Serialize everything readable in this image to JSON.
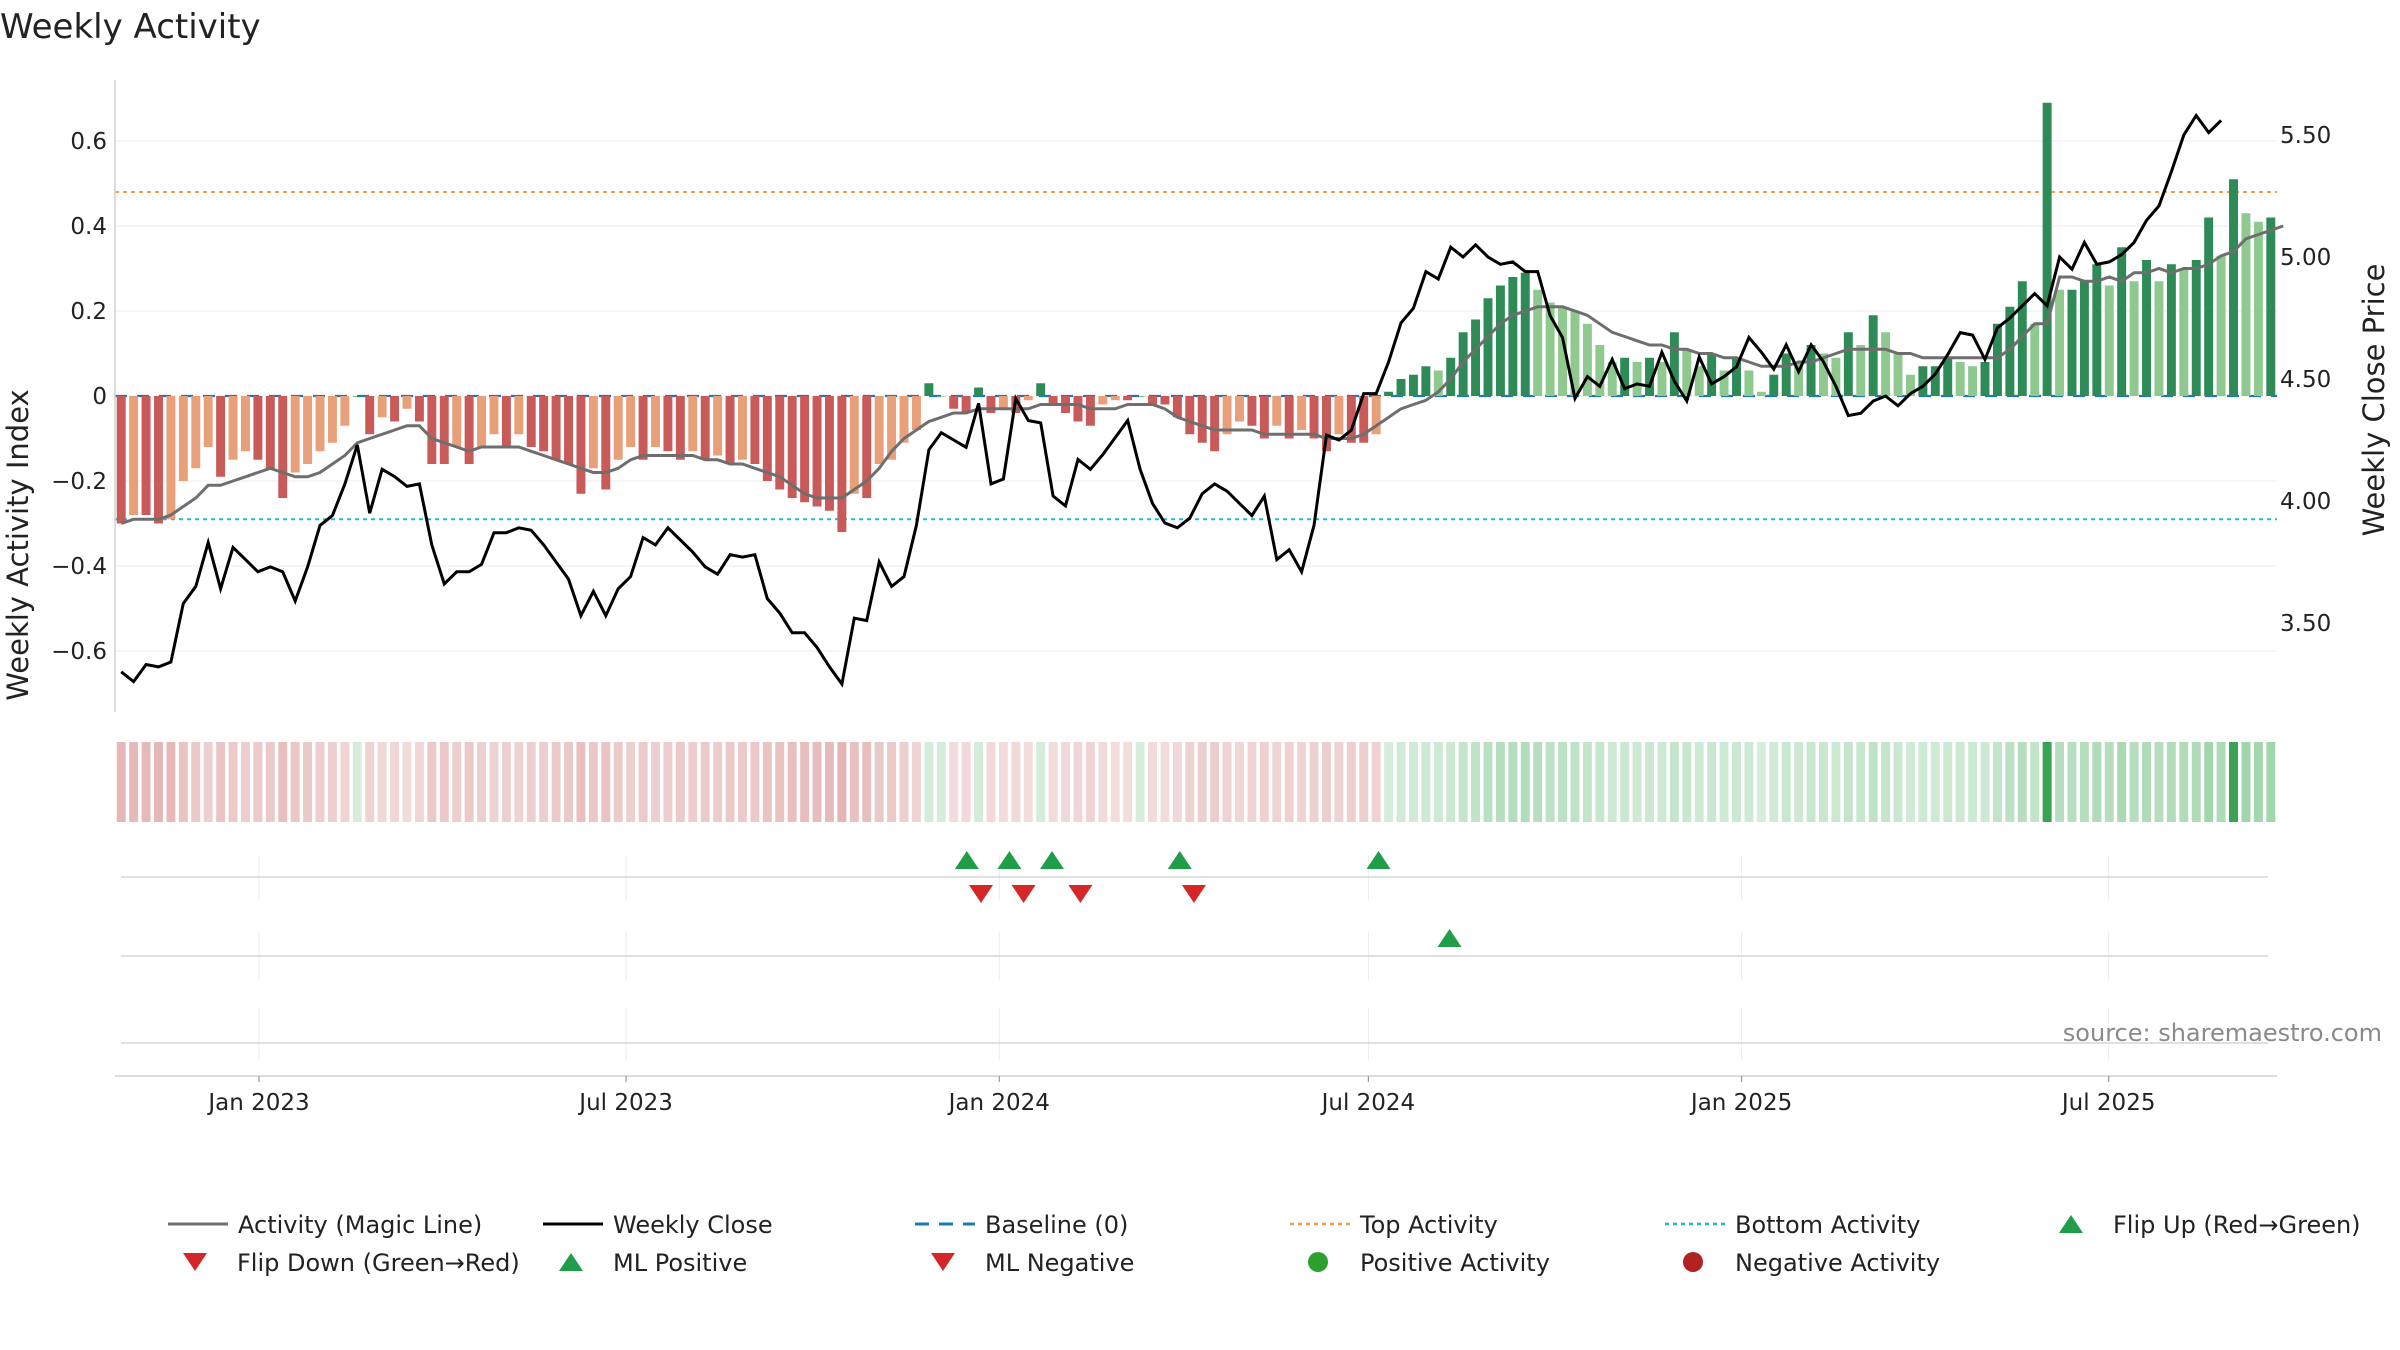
{
  "chart_data": {
    "type": "bar",
    "title": "Weekly Activity",
    "ylabel": "Weekly Activity Index",
    "y2label": "Weekly Close Price",
    "ylim": [
      -0.74,
      0.74
    ],
    "y2lim": [
      3.12,
      5.65
    ],
    "yticks": [
      0.6,
      0.4,
      0.2,
      0,
      -0.2,
      -0.4,
      -0.6
    ],
    "ytick_labels": [
      "0.6",
      "0.4",
      "0.2",
      "0",
      "−0.2",
      "−0.4",
      "−0.6"
    ],
    "y2ticks": [
      5.5,
      5.0,
      4.5,
      4.0,
      3.5
    ],
    "y2tick_labels": [
      "5.50",
      "5.00",
      "4.50",
      "4.00",
      "3.50"
    ],
    "x_start": "2022-10-22",
    "x_end": "2025-09-22",
    "xtick_dates": [
      "2023-01-01",
      "2023-07-01",
      "2024-01-01",
      "2024-07-01",
      "2025-01-01",
      "2025-07-01"
    ],
    "xtick_labels": [
      "Jan 2023",
      "Jul 2023",
      "Jan 2024",
      "Jul 2024",
      "Jan 2025",
      "Jul 2025"
    ],
    "reference_lines": {
      "top_activity": 0.48,
      "bottom_activity": -0.29,
      "baseline": 0
    },
    "activity": [
      -0.3,
      -0.28,
      -0.28,
      -0.3,
      -0.29,
      -0.2,
      -0.17,
      -0.12,
      -0.19,
      -0.15,
      -0.13,
      -0.15,
      -0.17,
      -0.24,
      -0.18,
      -0.16,
      -0.13,
      -0.11,
      -0.07,
      0,
      -0.09,
      -0.05,
      -0.06,
      -0.03,
      -0.06,
      -0.16,
      -0.16,
      -0.12,
      -0.16,
      -0.12,
      -0.09,
      -0.12,
      -0.09,
      -0.12,
      -0.13,
      -0.15,
      -0.16,
      -0.23,
      -0.17,
      -0.22,
      -0.15,
      -0.12,
      -0.15,
      -0.12,
      -0.13,
      -0.15,
      -0.13,
      -0.15,
      -0.14,
      -0.16,
      -0.15,
      -0.16,
      -0.2,
      -0.22,
      -0.24,
      -0.25,
      -0.26,
      -0.27,
      -0.32,
      -0.23,
      -0.24,
      -0.16,
      -0.15,
      -0.11,
      -0.08,
      0.03,
      0,
      -0.03,
      -0.04,
      0.02,
      -0.04,
      -0.03,
      -0.04,
      -0.01,
      0.03,
      -0.02,
      -0.04,
      -0.06,
      -0.07,
      -0.02,
      -0.01,
      -0.01,
      0,
      -0.02,
      -0.02,
      -0.05,
      -0.09,
      -0.11,
      -0.13,
      -0.09,
      -0.06,
      -0.07,
      -0.1,
      -0.07,
      -0.1,
      -0.08,
      -0.1,
      -0.13,
      -0.09,
      -0.11,
      -0.11,
      -0.09,
      0.01,
      0.04,
      0.05,
      0.07,
      0.06,
      0.09,
      0.15,
      0.18,
      0.23,
      0.26,
      0.28,
      0.29,
      0.25,
      0.22,
      0.21,
      0.2,
      0.17,
      0.12,
      0.08,
      0.09,
      0.08,
      0.09,
      0.08,
      0.15,
      0.11,
      0.07,
      0.1,
      0.06,
      0.09,
      0.06,
      0.01,
      0.05,
      0.1,
      0.08,
      0.12,
      0.1,
      0.09,
      0.15,
      0.12,
      0.19,
      0.15,
      0.1,
      0.05,
      0.07,
      0.07,
      0.09,
      0.08,
      0.07,
      0.08,
      0.17,
      0.21,
      0.27,
      0.17,
      0.69,
      0.25,
      0.25,
      0.27,
      0.31,
      0.26,
      0.35,
      0.27,
      0.32,
      0.27,
      0.31,
      0.3,
      0.32,
      0.42,
      0.33,
      0.51,
      0.43,
      0.41,
      0.42
    ],
    "magic_line": [
      -0.3,
      -0.29,
      -0.29,
      -0.29,
      -0.28,
      -0.26,
      -0.24,
      -0.21,
      -0.21,
      -0.2,
      -0.19,
      -0.18,
      -0.17,
      -0.18,
      -0.19,
      -0.19,
      -0.18,
      -0.16,
      -0.14,
      -0.11,
      -0.1,
      -0.09,
      -0.08,
      -0.07,
      -0.07,
      -0.1,
      -0.11,
      -0.12,
      -0.13,
      -0.12,
      -0.12,
      -0.12,
      -0.12,
      -0.13,
      -0.14,
      -0.15,
      -0.16,
      -0.17,
      -0.18,
      -0.18,
      -0.17,
      -0.15,
      -0.14,
      -0.14,
      -0.14,
      -0.14,
      -0.14,
      -0.15,
      -0.15,
      -0.16,
      -0.16,
      -0.17,
      -0.18,
      -0.19,
      -0.21,
      -0.23,
      -0.24,
      -0.24,
      -0.24,
      -0.22,
      -0.2,
      -0.17,
      -0.13,
      -0.1,
      -0.08,
      -0.06,
      -0.05,
      -0.04,
      -0.04,
      -0.03,
      -0.03,
      -0.03,
      -0.03,
      -0.03,
      -0.02,
      -0.02,
      -0.02,
      -0.02,
      -0.03,
      -0.03,
      -0.03,
      -0.02,
      -0.02,
      -0.02,
      -0.03,
      -0.05,
      -0.06,
      -0.07,
      -0.08,
      -0.08,
      -0.08,
      -0.08,
      -0.09,
      -0.09,
      -0.09,
      -0.09,
      -0.09,
      -0.1,
      -0.1,
      -0.1,
      -0.09,
      -0.07,
      -0.05,
      -0.03,
      -0.02,
      -0.01,
      0.01,
      0.04,
      0.08,
      0.11,
      0.14,
      0.17,
      0.19,
      0.2,
      0.21,
      0.21,
      0.21,
      0.2,
      0.19,
      0.17,
      0.15,
      0.14,
      0.13,
      0.12,
      0.12,
      0.11,
      0.11,
      0.1,
      0.1,
      0.09,
      0.09,
      0.08,
      0.07,
      0.07,
      0.07,
      0.08,
      0.08,
      0.09,
      0.1,
      0.11,
      0.11,
      0.11,
      0.11,
      0.1,
      0.1,
      0.09,
      0.09,
      0.09,
      0.09,
      0.09,
      0.09,
      0.09,
      0.11,
      0.14,
      0.17,
      0.17,
      0.28,
      0.28,
      0.27,
      0.27,
      0.28,
      0.27,
      0.29,
      0.29,
      0.3,
      0.29,
      0.3,
      0.3,
      0.31,
      0.33,
      0.34,
      0.37,
      0.38,
      0.39,
      0.4
    ],
    "weekly_close": [
      3.3,
      3.26,
      3.33,
      3.32,
      3.34,
      3.58,
      3.65,
      3.83,
      3.64,
      3.81,
      3.76,
      3.71,
      3.73,
      3.71,
      3.59,
      3.73,
      3.9,
      3.94,
      4.07,
      4.23,
      3.95,
      4.13,
      4.1,
      4.06,
      4.07,
      3.82,
      3.66,
      3.71,
      3.71,
      3.74,
      3.87,
      3.87,
      3.89,
      3.88,
      3.82,
      3.75,
      3.68,
      3.53,
      3.63,
      3.53,
      3.64,
      3.69,
      3.85,
      3.82,
      3.89,
      3.84,
      3.79,
      3.73,
      3.7,
      3.78,
      3.77,
      3.78,
      3.6,
      3.54,
      3.46,
      3.46,
      3.4,
      3.32,
      3.25,
      3.52,
      3.51,
      3.75,
      3.65,
      3.69,
      3.9,
      4.21,
      4.28,
      4.25,
      4.22,
      4.4,
      4.07,
      4.09,
      4.42,
      4.33,
      4.32,
      4.02,
      3.98,
      4.17,
      4.13,
      4.19,
      4.26,
      4.33,
      4.13,
      3.99,
      3.91,
      3.89,
      3.93,
      4.03,
      4.07,
      4.04,
      3.99,
      3.94,
      4.02,
      3.76,
      3.8,
      3.71,
      3.9,
      4.27,
      4.25,
      4.29,
      4.44,
      4.44,
      4.57,
      4.73,
      4.79,
      4.94,
      4.91,
      5.04,
      5.0,
      5.05,
      5.0,
      4.97,
      4.98,
      4.94,
      4.94,
      4.76,
      4.67,
      4.42,
      4.51,
      4.47,
      4.58,
      4.46,
      4.48,
      4.47,
      4.61,
      4.49,
      4.41,
      4.59,
      4.48,
      4.51,
      4.55,
      4.67,
      4.61,
      4.54,
      4.64,
      4.53,
      4.64,
      4.57,
      4.47,
      4.35,
      4.36,
      4.41,
      4.43,
      4.39,
      4.44,
      4.47,
      4.52,
      4.6,
      4.69,
      4.68,
      4.58,
      4.71,
      4.75,
      4.8,
      4.85,
      4.8,
      5.0,
      4.95,
      5.06,
      4.97,
      4.98,
      5.01,
      5.06,
      5.15,
      5.21,
      5.35,
      5.5,
      5.58,
      5.51,
      5.56
    ],
    "ml_positive_dates": [
      "2024-08-10"
    ],
    "flip_up_dates": [
      "2023-12-16",
      "2024-01-06",
      "2024-01-27",
      "2024-03-30",
      "2024-07-06"
    ],
    "flip_down_dates": [
      "2023-12-23",
      "2024-01-13",
      "2024-02-10",
      "2024-04-06"
    ],
    "legend": [
      {
        "label": "Activity (Magic Line)",
        "color": "#6e6e6e",
        "kind": "line"
      },
      {
        "label": "Weekly Close",
        "color": "#000000",
        "kind": "line"
      },
      {
        "label": "Baseline (0)",
        "color": "#1f77b4",
        "kind": "dash"
      },
      {
        "label": "Top Activity",
        "color": "#f0a050",
        "kind": "dot"
      },
      {
        "label": "Bottom Activity",
        "color": "#17becf",
        "kind": "dot"
      },
      {
        "label": "Flip Up (Red→Green)",
        "color": "#1f9d48",
        "kind": "tri-up"
      },
      {
        "label": "Flip Down (Green→Red)",
        "color": "#d62728",
        "kind": "tri-down"
      },
      {
        "label": "ML Positive",
        "color": "#1f9d48",
        "kind": "tri-up"
      },
      {
        "label": "ML Negative",
        "color": "#d62728",
        "kind": "tri-down"
      },
      {
        "label": "Positive Activity",
        "color": "#2ca02c",
        "kind": "circle"
      },
      {
        "label": "Negative Activity",
        "color": "#b22222",
        "kind": "circle"
      }
    ],
    "source": "source: sharemaestro.com"
  },
  "colors": {
    "pos_dark": "#2e8b57",
    "pos_light": "#8fc98f",
    "neg_dark": "#c85a5a",
    "neg_light": "#e8a07a",
    "close": "#000000",
    "magic": "#6e6e6e",
    "top": "#f0a050",
    "bottom": "#17becf",
    "baseline": "#1f77b4",
    "up": "#1f9d48",
    "down": "#d62728"
  }
}
